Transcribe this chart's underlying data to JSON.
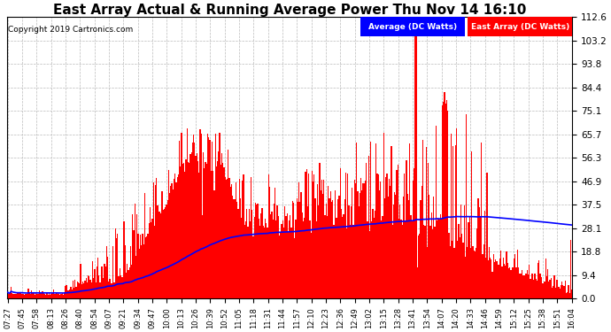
{
  "title": "East Array Actual & Running Average Power Thu Nov 14 16:10",
  "copyright": "Copyright 2019 Cartronics.com",
  "legend_labels": [
    "Average (DC Watts)",
    "East Array (DC Watts)"
  ],
  "legend_colors": [
    "#0000ff",
    "#ff0000"
  ],
  "y_ticks": [
    0.0,
    9.4,
    18.8,
    28.1,
    37.5,
    46.9,
    56.3,
    65.7,
    75.1,
    84.4,
    93.8,
    103.2,
    112.6
  ],
  "y_max": 112.6,
  "y_min": 0.0,
  "background_color": "#ffffff",
  "plot_bg_color": "#ffffff",
  "grid_color": "#bbbbbb",
  "bar_color": "#ff0000",
  "avg_line_color": "#0000ff",
  "title_fontsize": 11,
  "num_points": 520
}
